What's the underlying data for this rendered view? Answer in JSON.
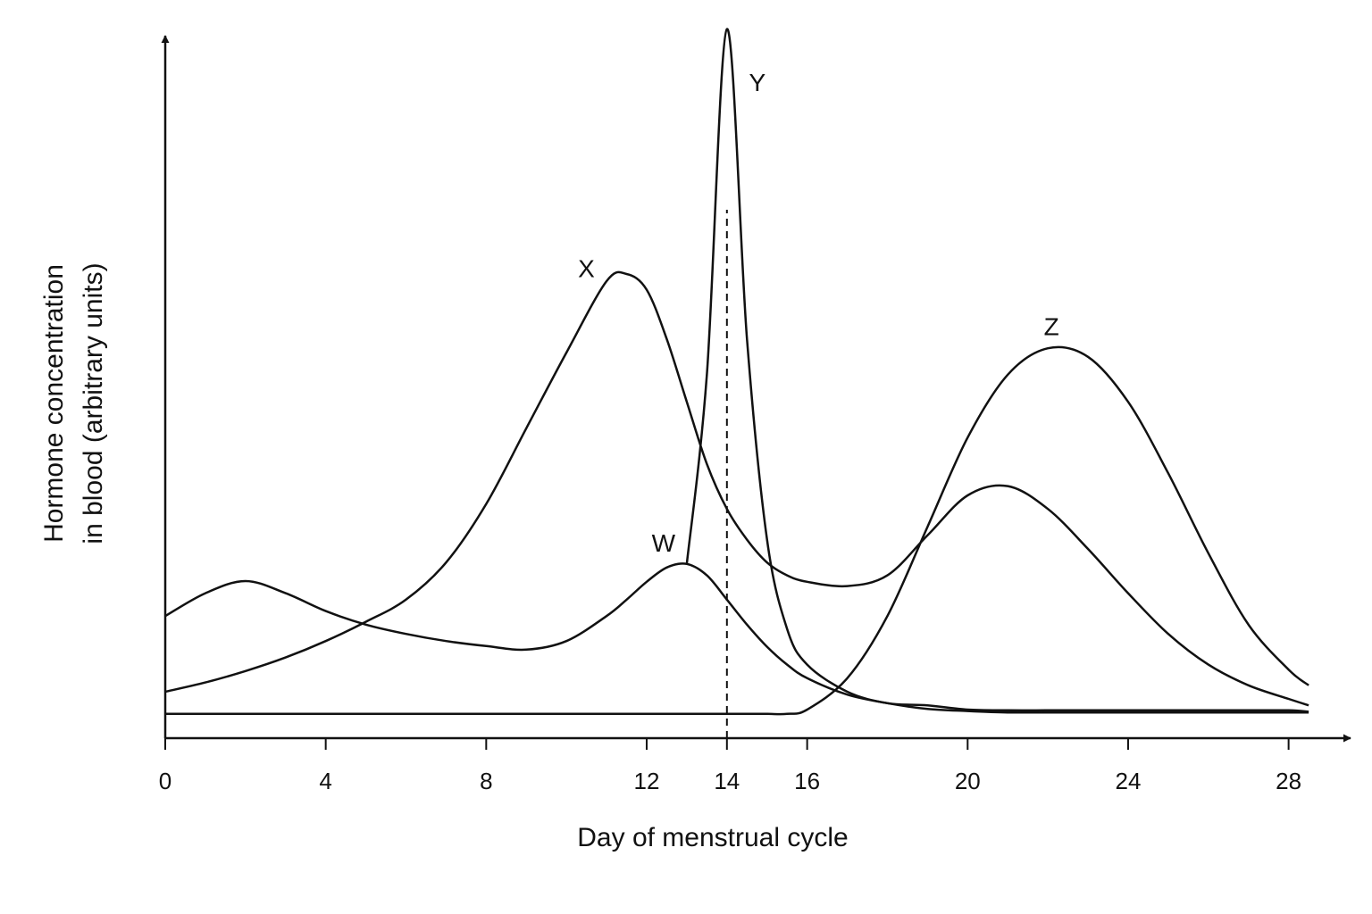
{
  "chart_data": {
    "type": "line",
    "xlabel": "Day of menstrual cycle",
    "ylabel": [
      "Hormone concentration",
      "in blood (arbitrary units)"
    ],
    "x": [
      0,
      1,
      2,
      3,
      4,
      5,
      6,
      7,
      8,
      9,
      10,
      11,
      11.5,
      12,
      12.5,
      13,
      13.5,
      14,
      14.5,
      15,
      15.5,
      16,
      17,
      18,
      19,
      20,
      21,
      22,
      23,
      24,
      25,
      26,
      27,
      28,
      28.5
    ],
    "series": [
      {
        "name": "W",
        "color": "#111111",
        "values": [
          17.1,
          20.3,
          22.0,
          20.3,
          17.8,
          15.9,
          14.6,
          13.6,
          12.9,
          12.4,
          13.6,
          17.1,
          19.4,
          21.9,
          23.9,
          24.4,
          22.8,
          19.4,
          15.9,
          12.8,
          10.3,
          8.4,
          6.1,
          4.9,
          4.1,
          3.8,
          3.6,
          3.6,
          3.6,
          3.6,
          3.6,
          3.6,
          3.6,
          3.6,
          3.6
        ]
      },
      {
        "name": "X",
        "color": "#111111",
        "values": [
          6.5,
          7.8,
          9.4,
          11.3,
          13.6,
          16.3,
          19.4,
          24.6,
          32.8,
          43.4,
          54.0,
          64.0,
          65.0,
          62.8,
          55.9,
          47.1,
          38.4,
          32.1,
          27.8,
          24.6,
          22.8,
          21.9,
          21.3,
          22.8,
          28.4,
          34.0,
          35.3,
          32.1,
          26.5,
          20.3,
          14.6,
          10.3,
          7.4,
          5.5,
          4.6
        ]
      },
      {
        "name": "Y",
        "color": "#111111",
        "values": [
          null,
          null,
          null,
          null,
          null,
          null,
          null,
          null,
          null,
          null,
          null,
          null,
          null,
          null,
          null,
          24.4,
          50.9,
          99.3,
          55.9,
          27.8,
          15.3,
          10.3,
          6.5,
          4.9,
          4.6,
          4.0,
          3.9,
          3.9,
          3.9,
          3.9,
          3.9,
          3.9,
          3.9,
          3.9,
          3.7
        ]
      },
      {
        "name": "Z",
        "color": "#111111",
        "values": [
          3.4,
          3.4,
          3.4,
          3.4,
          3.4,
          3.4,
          3.4,
          3.4,
          3.4,
          3.4,
          3.4,
          3.4,
          3.4,
          3.4,
          3.4,
          3.4,
          3.4,
          3.4,
          3.4,
          3.4,
          3.4,
          4.0,
          8.4,
          17.1,
          29.6,
          42.1,
          50.9,
          54.6,
          53.4,
          47.1,
          37.1,
          25.9,
          15.9,
          9.6,
          7.4
        ]
      }
    ],
    "xlim": [
      0,
      29.5
    ],
    "xticks": [
      0,
      4,
      8,
      12,
      14,
      16,
      20,
      24,
      28
    ],
    "ylim": [
      0,
      100
    ],
    "vline": 14,
    "grid": false
  }
}
